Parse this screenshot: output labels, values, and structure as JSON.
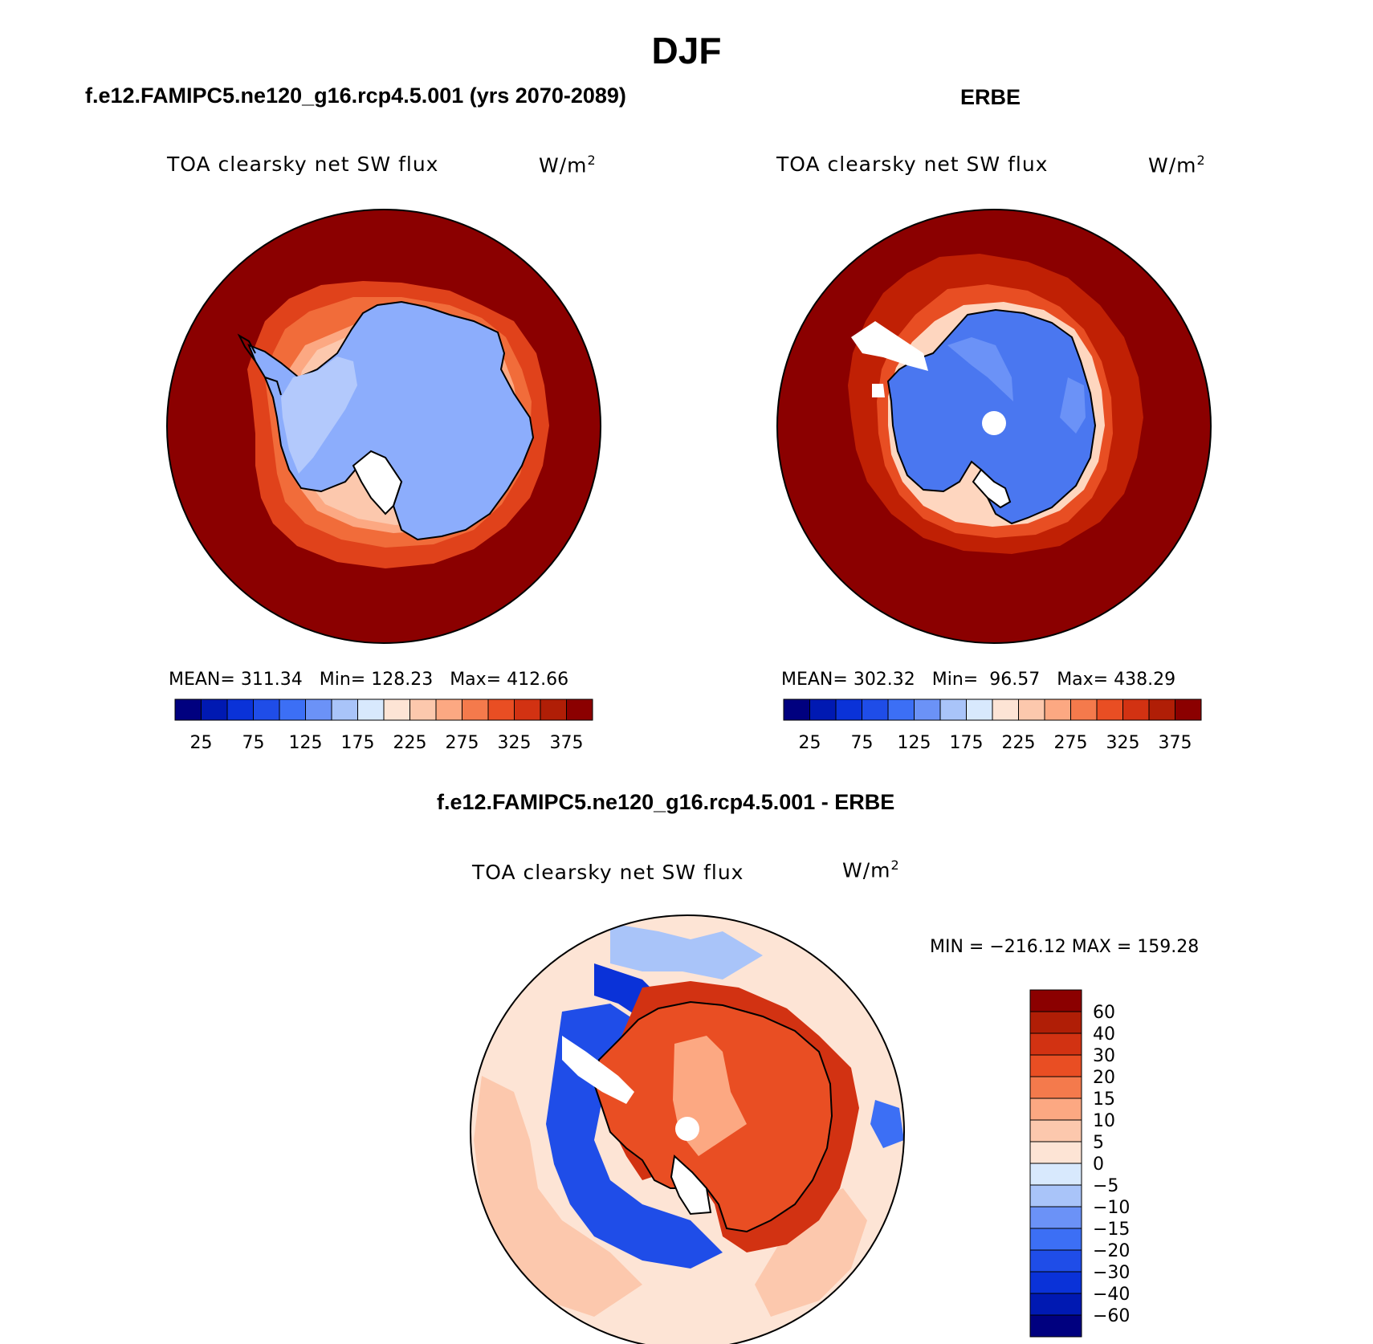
{
  "figure": {
    "title": "DJF",
    "colors": {
      "ocean": "#8b0000",
      "land_model": "#8cadfc",
      "land_obs": "#4a77f0",
      "coast": "#000000",
      "ring_model": [
        "#e0421b",
        "#f16c3a",
        "#fca882",
        "#fcc8ad"
      ],
      "ring_obs": [
        "#c02004",
        "#e84e23",
        "#fed6bf"
      ]
    }
  },
  "panels": [
    {
      "title": "f.e12.FAMIPC5.ne120_g16.rcp4.5.001 (yrs 2070-2089)",
      "variable": "TOA clearsky net SW flux",
      "units": "W/m",
      "units_sup": "2",
      "stats": "MEAN= 311.34   Min= 128.23   Max= 412.66"
    },
    {
      "title": "ERBE",
      "variable": "TOA clearsky net SW flux",
      "units": "W/m",
      "units_sup": "2",
      "stats": "MEAN= 302.32   Min=  96.57   Max= 438.29"
    },
    {
      "title": "f.e12.FAMIPC5.ne120_g16.rcp4.5.001 - ERBE",
      "variable": "TOA clearsky net SW flux",
      "units": "W/m",
      "units_sup": "2",
      "stats": "MIN = −216.12 MAX = 159.28"
    }
  ],
  "chart_data": [
    {
      "type": "heatmap",
      "projection": "south polar stereographic",
      "title": "f.e12.FAMIPC5.ne120_g16.rcp4.5.001 (yrs 2070-2089)",
      "subtitle": "TOA clearsky net SW flux",
      "units": "W/m2",
      "mean": 311.34,
      "min": 128.23,
      "max": 412.66,
      "colorbar": {
        "orientation": "horizontal",
        "levels": [
          25,
          50,
          75,
          100,
          125,
          150,
          175,
          200,
          225,
          250,
          275,
          300,
          325,
          350,
          375
        ],
        "tick_labels": [
          "25",
          "75",
          "125",
          "175",
          "225",
          "275",
          "325",
          "375"
        ],
        "colors": [
          "#00007f",
          "#0019b2",
          "#0a32d8",
          "#1f4de8",
          "#3c6ff5",
          "#6b92f7",
          "#a9c4f9",
          "#d8e9fd",
          "#fde4d5",
          "#fcc8ad",
          "#fca882",
          "#f47a4c",
          "#e94e23",
          "#d23212",
          "#b01e06",
          "#8b0000"
        ]
      }
    },
    {
      "type": "heatmap",
      "projection": "south polar stereographic",
      "title": "ERBE",
      "subtitle": "TOA clearsky net SW flux",
      "units": "W/m2",
      "mean": 302.32,
      "min": 96.57,
      "max": 438.29,
      "colorbar": {
        "orientation": "horizontal",
        "levels": [
          25,
          50,
          75,
          100,
          125,
          150,
          175,
          200,
          225,
          250,
          275,
          300,
          325,
          350,
          375
        ],
        "tick_labels": [
          "25",
          "75",
          "125",
          "175",
          "225",
          "275",
          "325",
          "375"
        ],
        "colors": [
          "#00007f",
          "#0019b2",
          "#0a32d8",
          "#1f4de8",
          "#3c6ff5",
          "#6b92f7",
          "#a9c4f9",
          "#d8e9fd",
          "#fde4d5",
          "#fcc8ad",
          "#fca882",
          "#f47a4c",
          "#e94e23",
          "#d23212",
          "#b01e06",
          "#8b0000"
        ]
      }
    },
    {
      "type": "heatmap",
      "projection": "south polar stereographic",
      "title": "f.e12.FAMIPC5.ne120_g16.rcp4.5.001 - ERBE",
      "subtitle": "TOA clearsky net SW flux",
      "units": "W/m2",
      "min": -216.12,
      "max": 159.28,
      "colorbar": {
        "orientation": "vertical",
        "levels": [
          -60,
          -40,
          -30,
          -20,
          -15,
          -10,
          -5,
          0,
          5,
          10,
          15,
          20,
          30,
          40,
          60
        ],
        "tick_labels": [
          "−60",
          "−40",
          "−30",
          "−20",
          "−15",
          "−10",
          "−5",
          "0",
          "5",
          "10",
          "15",
          "20",
          "30",
          "40",
          "60"
        ],
        "colors": [
          "#00007f",
          "#0019b2",
          "#0a32d8",
          "#1f4de8",
          "#3c6ff5",
          "#6b92f7",
          "#a9c4f9",
          "#d8e9fd",
          "#fde4d5",
          "#fcc8ad",
          "#fca882",
          "#f47a4c",
          "#e94e23",
          "#d23212",
          "#b01e06",
          "#8b0000"
        ]
      }
    }
  ]
}
